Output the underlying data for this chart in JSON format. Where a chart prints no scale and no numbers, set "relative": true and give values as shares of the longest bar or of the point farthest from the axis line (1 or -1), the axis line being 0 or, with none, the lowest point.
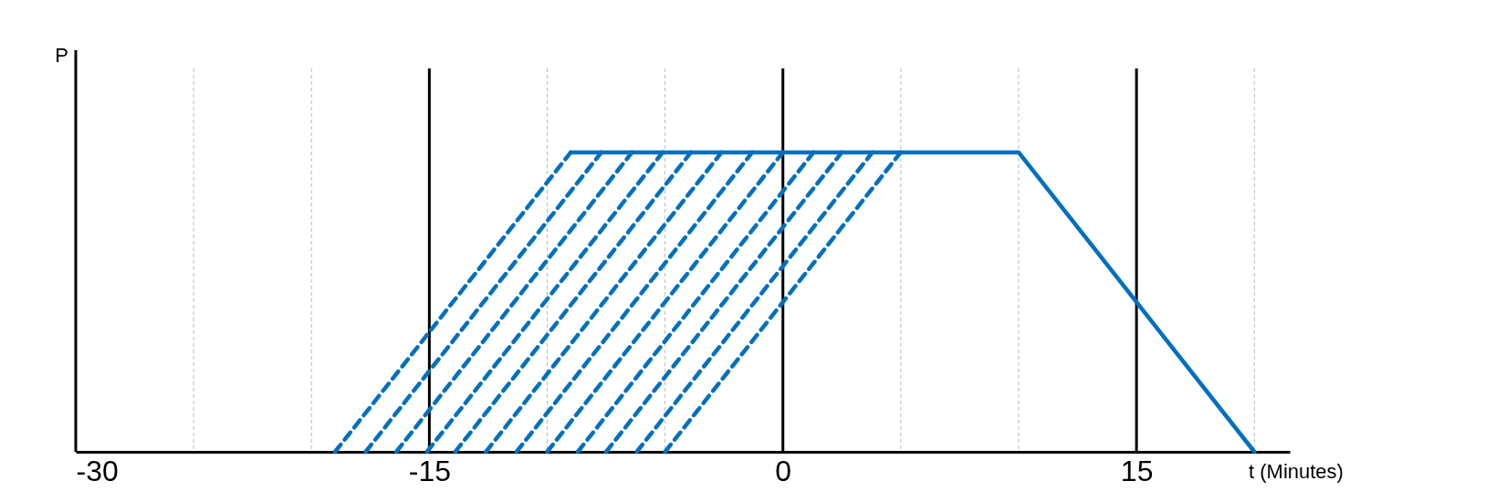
{
  "chart_data": {
    "type": "line",
    "relative": true,
    "xlabel": "t (Minutes)",
    "ylabel": "P",
    "xlim": [
      -30,
      21.5
    ],
    "xticks": [
      -30,
      {
        "value": -25,
        "label": null
      },
      {
        "value": -20,
        "label": null
      },
      -15,
      {
        "value": -10,
        "label": null
      },
      {
        "value": -5,
        "label": null
      },
      0,
      {
        "value": 5,
        "label": null
      },
      {
        "value": 10,
        "label": null
      },
      15,
      {
        "value": 20,
        "label": null
      }
    ],
    "grid": "x",
    "marker": "none",
    "tick_labels": "x",
    "series": [
      {
        "color": "#0070c0",
        "line_style": "solid",
        "x": [
          -9,
          10,
          20
        ],
        "values": [
          1,
          1,
          0
        ]
      },
      {
        "color": "#0070c0",
        "line_style": "dashed",
        "x": [
          -19,
          -9
        ],
        "values": [
          0,
          1
        ]
      },
      {
        "color": "#0070c0",
        "line_style": "dashed",
        "x": [
          -17.7,
          -7.7
        ],
        "values": [
          0,
          1
        ]
      },
      {
        "color": "#0070c0",
        "line_style": "dashed",
        "x": [
          -16.4,
          -6.4
        ],
        "values": [
          0,
          1
        ]
      },
      {
        "color": "#0070c0",
        "line_style": "dashed",
        "x": [
          -15.1,
          -5.1
        ],
        "values": [
          0,
          1
        ]
      },
      {
        "color": "#0070c0",
        "line_style": "dashed",
        "x": [
          -13.9,
          -3.9
        ],
        "values": [
          0,
          1
        ]
      },
      {
        "color": "#0070c0",
        "line_style": "dashed",
        "x": [
          -12.6,
          -2.6
        ],
        "values": [
          0,
          1
        ]
      },
      {
        "color": "#0070c0",
        "line_style": "dashed",
        "x": [
          -11.3,
          -1.3
        ],
        "values": [
          0,
          1
        ]
      },
      {
        "color": "#0070c0",
        "line_style": "dashed",
        "x": [
          -10,
          0
        ],
        "values": [
          0,
          1
        ]
      },
      {
        "color": "#0070c0",
        "line_style": "dashed",
        "x": [
          -8.7,
          1.3
        ],
        "values": [
          0,
          1
        ]
      },
      {
        "color": "#0070c0",
        "line_style": "dashed",
        "x": [
          -7.5,
          2.5
        ],
        "values": [
          0,
          1
        ]
      },
      {
        "color": "#0070c0",
        "line_style": "dashed",
        "x": [
          -6.2,
          3.8
        ],
        "values": [
          0,
          1
        ]
      },
      {
        "color": "#0070c0",
        "line_style": "dashed",
        "x": [
          -5,
          5
        ],
        "values": [
          0,
          1
        ]
      }
    ]
  }
}
